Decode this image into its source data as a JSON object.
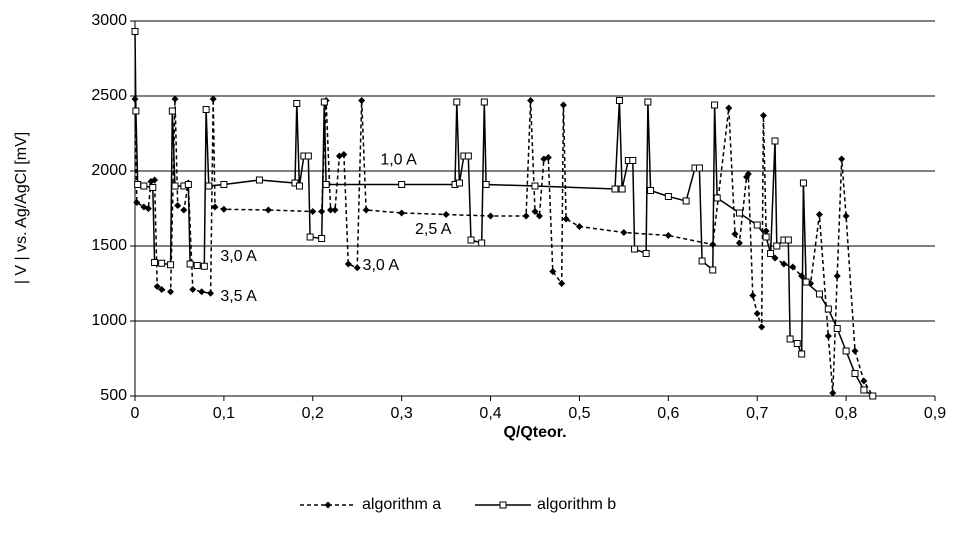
{
  "chart_data": {
    "type": "line",
    "xlabel": "Q/Qteor.",
    "ylabel": "| V | vs. Ag/AgCl [mV]",
    "xlim": [
      0,
      0.9
    ],
    "ylim": [
      500,
      3000
    ],
    "xticks": [
      0,
      {
        "value": 0.1,
        "label": "0,1"
      },
      {
        "value": 0.2,
        "label": "0,2"
      },
      {
        "value": 0.3,
        "label": "0,3"
      },
      {
        "value": 0.4,
        "label": "0,4"
      },
      {
        "value": 0.5,
        "label": "0,5"
      },
      {
        "value": 0.6,
        "label": "0,6"
      },
      {
        "value": 0.7,
        "label": "0,7"
      },
      {
        "value": 0.8,
        "label": "0,8"
      },
      {
        "value": 0.9,
        "label": "0,9"
      }
    ],
    "yticks": [
      500,
      1000,
      1500,
      2000,
      2500,
      3000
    ],
    "grid": true,
    "legend": "bottom",
    "series": [
      {
        "name": "algorithm a",
        "color": "#000000",
        "linestyle": "dashed",
        "marker": "diamond",
        "x": [
          0,
          0.002,
          0.01,
          0.015,
          0.018,
          0.022,
          0.025,
          0.03,
          0.04,
          0.045,
          0.048,
          0.055,
          0.06,
          0.065,
          0.075,
          0.085,
          0.088,
          0.09,
          0.1,
          0.15,
          0.2,
          0.21,
          0.215,
          0.22,
          0.225,
          0.23,
          0.235,
          0.24,
          0.25,
          0.255,
          0.26,
          0.3,
          0.35,
          0.4,
          0.44,
          0.445,
          0.45,
          0.455,
          0.46,
          0.465,
          0.47,
          0.48,
          0.482,
          0.485,
          0.5,
          0.55,
          0.6,
          0.65,
          0.668,
          0.675,
          0.68,
          0.688,
          0.69,
          0.695,
          0.7,
          0.705,
          0.707,
          0.71,
          0.72,
          0.73,
          0.74,
          0.75,
          0.76,
          0.77,
          0.78,
          0.785,
          0.79,
          0.795,
          0.8,
          0.81,
          0.82,
          0.83
        ],
        "values": [
          2480,
          1790,
          1760,
          1750,
          1930,
          1940,
          1230,
          1210,
          1195,
          2480,
          1770,
          1740,
          1920,
          1210,
          1195,
          1185,
          2480,
          1760,
          1745,
          1740,
          1730,
          1730,
          2470,
          1740,
          1740,
          2100,
          2110,
          1380,
          1355,
          2470,
          1740,
          1720,
          1710,
          1700,
          1700,
          2470,
          1730,
          1700,
          2080,
          2090,
          1330,
          1250,
          2440,
          1680,
          1630,
          1590,
          1570,
          1510,
          2420,
          1580,
          1520,
          1960,
          1980,
          1170,
          1050,
          960,
          2370,
          1600,
          1420,
          1380,
          1360,
          1300,
          1250,
          1710,
          900,
          520,
          1300,
          2080,
          1700,
          800,
          600,
          500
        ]
      },
      {
        "name": "algorithm b",
        "color": "#000000",
        "linestyle": "solid",
        "marker": "square",
        "x": [
          0,
          0.001,
          0.003,
          0.01,
          0.02,
          0.022,
          0.03,
          0.04,
          0.042,
          0.045,
          0.055,
          0.06,
          0.062,
          0.07,
          0.078,
          0.08,
          0.083,
          0.1,
          0.14,
          0.18,
          0.182,
          0.185,
          0.19,
          0.195,
          0.197,
          0.21,
          0.213,
          0.215,
          0.3,
          0.36,
          0.362,
          0.365,
          0.37,
          0.375,
          0.378,
          0.39,
          0.393,
          0.395,
          0.45,
          0.54,
          0.545,
          0.548,
          0.555,
          0.56,
          0.562,
          0.575,
          0.577,
          0.58,
          0.6,
          0.62,
          0.63,
          0.635,
          0.638,
          0.65,
          0.652,
          0.655,
          0.68,
          0.7,
          0.71,
          0.715,
          0.72,
          0.722,
          0.73,
          0.735,
          0.737,
          0.745,
          0.75,
          0.752,
          0.755,
          0.77,
          0.78,
          0.79,
          0.8,
          0.81,
          0.82,
          0.83
        ],
        "values": [
          2930,
          2400,
          1910,
          1900,
          1890,
          1390,
          1385,
          1375,
          2400,
          1900,
          1900,
          1910,
          1380,
          1370,
          1365,
          2410,
          1900,
          1910,
          1940,
          1920,
          2450,
          1900,
          2100,
          2100,
          1560,
          1550,
          2460,
          1910,
          1910,
          1910,
          2460,
          1920,
          2100,
          2100,
          1540,
          1520,
          2460,
          1910,
          1900,
          1880,
          2470,
          1880,
          2070,
          2070,
          1480,
          1450,
          2460,
          1870,
          1830,
          1800,
          2020,
          2020,
          1400,
          1340,
          2440,
          1820,
          1720,
          1640,
          1560,
          1450,
          2200,
          1500,
          1540,
          1540,
          880,
          850,
          780,
          1920,
          1260,
          1180,
          1080,
          950,
          800,
          650,
          540,
          500
        ]
      }
    ],
    "annotations": [
      {
        "text": "1,0 A",
        "x": 0.276,
        "y": 2073
      },
      {
        "text": "2,5 A",
        "x": 0.315,
        "y": 1607
      },
      {
        "text": "3,0 A",
        "x": 0.096,
        "y": 1427
      },
      {
        "text": "3,5 A",
        "x": 0.096,
        "y": 1160
      },
      {
        "text": "3,0 A",
        "x": 0.256,
        "y": 1367
      }
    ]
  }
}
